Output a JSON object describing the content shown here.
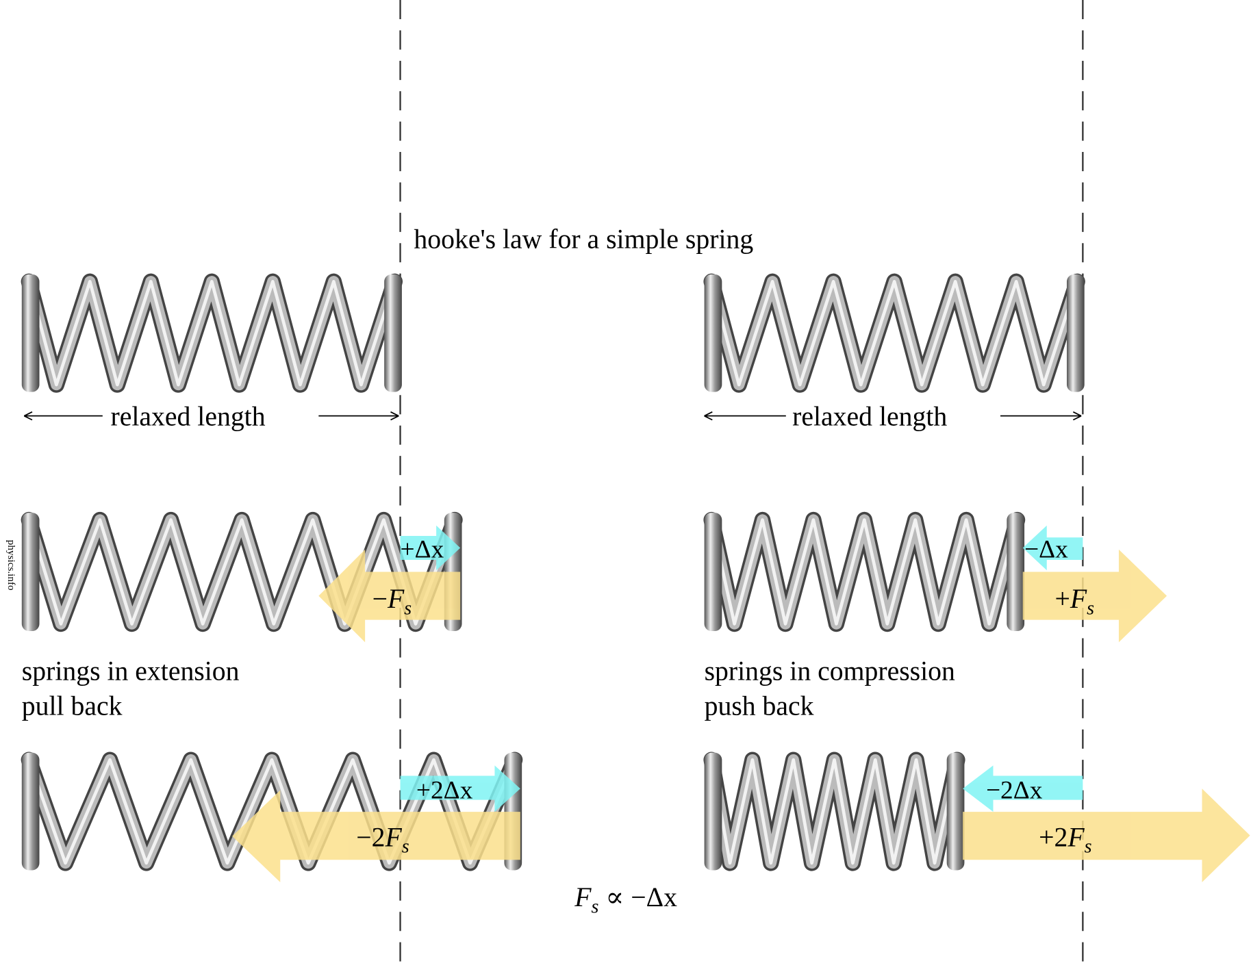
{
  "title": "hooke's law for a simple spring",
  "relaxed_label": "relaxed length",
  "extension": {
    "caption_line1": "springs in extension",
    "caption_line2": "pull back",
    "dx1": "+Δx",
    "f1_sign": "−",
    "dx2": "+2Δx",
    "f2_sign": "−2"
  },
  "compression": {
    "caption_line1": "springs in compression",
    "caption_line2": "push back",
    "dx1": "−Δx",
    "f1_sign": "+",
    "dx2": "−2Δx",
    "f2_sign": "+2"
  },
  "force_symbol": "F",
  "force_subscript": "s",
  "formula": {
    "lhs": "F",
    "sub": "s",
    "rhs": " ∝ −Δx"
  },
  "watermark": "physics.info",
  "colors": {
    "displacement": "#80f4f4",
    "force": "#fbe08c",
    "dash": "#333333"
  }
}
